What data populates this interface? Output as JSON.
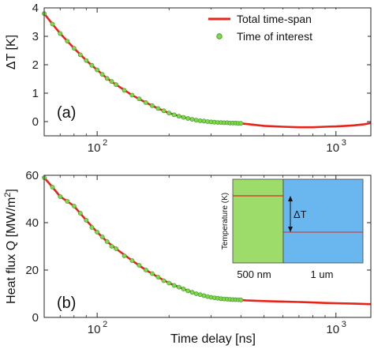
{
  "colors": {
    "total_line": "#e8241a",
    "interest_marker_fill": "#7fd84a",
    "interest_marker_edge": "#3f8f2a",
    "inset_left": "#9ddc6a",
    "inset_right": "#6ab7ef",
    "inset_line": "#d62a1f",
    "axis": "#262626"
  },
  "chart_data": [
    {
      "type": "line",
      "panel_label": "(a)",
      "xlabel": "",
      "ylabel": "ΔT [K]",
      "x_scale": "log",
      "xlim": [
        60,
        1400
      ],
      "ylim": [
        -0.5,
        4
      ],
      "x_ticks": [
        100,
        1000
      ],
      "x_tick_labels": [
        "10",
        "10"
      ],
      "x_tick_exponents": [
        "2",
        "3"
      ],
      "y_ticks": [
        0,
        1,
        2,
        3,
        4
      ],
      "y_tick_labels": [
        "0",
        "1",
        "2",
        "3",
        "4"
      ],
      "legend": {
        "placement": "top-right",
        "entries": [
          "Total time-span",
          "Time of interest"
        ]
      },
      "series": [
        {
          "name": "Total time-span",
          "style": "line",
          "x": [
            60,
            65,
            70,
            75,
            80,
            90,
            100,
            110,
            120,
            140,
            160,
            180,
            200,
            230,
            260,
            300,
            340,
            380,
            420,
            500,
            600,
            700,
            800,
            900,
            1000,
            1100,
            1200,
            1300,
            1400
          ],
          "y": [
            3.8,
            3.43,
            3.1,
            2.83,
            2.58,
            2.15,
            1.82,
            1.52,
            1.3,
            0.93,
            0.67,
            0.46,
            0.3,
            0.15,
            0.05,
            -0.01,
            -0.04,
            -0.05,
            -0.08,
            -0.15,
            -0.18,
            -0.2,
            -0.2,
            -0.18,
            -0.17,
            -0.15,
            -0.13,
            -0.1,
            -0.05
          ]
        },
        {
          "name": "Time of interest",
          "style": "markers",
          "x": [
            60,
            65,
            70,
            75,
            80,
            85,
            90,
            95,
            100,
            105,
            110,
            115,
            120,
            130,
            140,
            150,
            160,
            170,
            180,
            190,
            200,
            210,
            220,
            230,
            240,
            250,
            260,
            270,
            280,
            290,
            300,
            310,
            320,
            330,
            340,
            350,
            360,
            370,
            380,
            390,
            400
          ],
          "y": [
            3.8,
            3.43,
            3.1,
            2.83,
            2.58,
            2.35,
            2.15,
            1.98,
            1.82,
            1.66,
            1.52,
            1.41,
            1.3,
            1.1,
            0.93,
            0.8,
            0.67,
            0.56,
            0.46,
            0.38,
            0.3,
            0.24,
            0.19,
            0.15,
            0.11,
            0.08,
            0.05,
            0.03,
            0.02,
            0.0,
            -0.01,
            -0.02,
            -0.03,
            -0.03,
            -0.04,
            -0.04,
            -0.05,
            -0.05,
            -0.05,
            -0.06,
            -0.06
          ]
        }
      ]
    },
    {
      "type": "line",
      "panel_label": "(b)",
      "xlabel": "Time delay [ns]",
      "ylabel": "Heat flux Q [MW/m",
      "ylabel_superscript": "2",
      "ylabel_suffix": "]",
      "x_scale": "log",
      "xlim": [
        60,
        1400
      ],
      "ylim": [
        0,
        60
      ],
      "x_ticks": [
        100,
        1000
      ],
      "x_tick_labels": [
        "10",
        "10"
      ],
      "x_tick_exponents": [
        "2",
        "3"
      ],
      "y_ticks": [
        0,
        20,
        40,
        60
      ],
      "y_tick_labels": [
        "0",
        "20",
        "40",
        "60"
      ],
      "series": [
        {
          "name": "Total time-span",
          "style": "line",
          "x": [
            60,
            65,
            70,
            75,
            80,
            90,
            100,
            110,
            120,
            140,
            160,
            180,
            200,
            230,
            260,
            300,
            340,
            380,
            420,
            500,
            600,
            700,
            800,
            900,
            1000,
            1100,
            1200,
            1300,
            1400
          ],
          "y": [
            59,
            55,
            51,
            49,
            47,
            41,
            36,
            32,
            29,
            24,
            20,
            17,
            14.5,
            12,
            10,
            8.5,
            7.8,
            7.5,
            7.2,
            6.9,
            6.7,
            6.5,
            6.3,
            6.1,
            6.0,
            5.9,
            5.8,
            5.7,
            5.6
          ]
        },
        {
          "name": "Time of interest",
          "style": "markers",
          "x": [
            60,
            65,
            70,
            75,
            80,
            85,
            90,
            95,
            100,
            105,
            110,
            115,
            120,
            130,
            140,
            150,
            160,
            170,
            180,
            190,
            200,
            210,
            220,
            230,
            240,
            250,
            260,
            270,
            280,
            290,
            300,
            310,
            320,
            330,
            340,
            350,
            360,
            370,
            380,
            390,
            400
          ],
          "y": [
            59,
            55,
            51,
            49,
            47,
            44,
            41,
            38,
            36,
            34,
            32,
            30,
            29,
            26,
            24,
            22,
            20,
            18.5,
            17,
            15.5,
            14.5,
            13.5,
            12.8,
            12,
            11.2,
            10.6,
            10,
            9.6,
            9.2,
            8.8,
            8.5,
            8.3,
            8.1,
            7.9,
            7.8,
            7.7,
            7.6,
            7.55,
            7.5,
            7.45,
            7.4
          ]
        }
      ],
      "inset": {
        "ylabel": "Temperature (K)",
        "delta_label": "ΔT",
        "left_label": "500 nm",
        "right_label": "1 um"
      }
    }
  ]
}
